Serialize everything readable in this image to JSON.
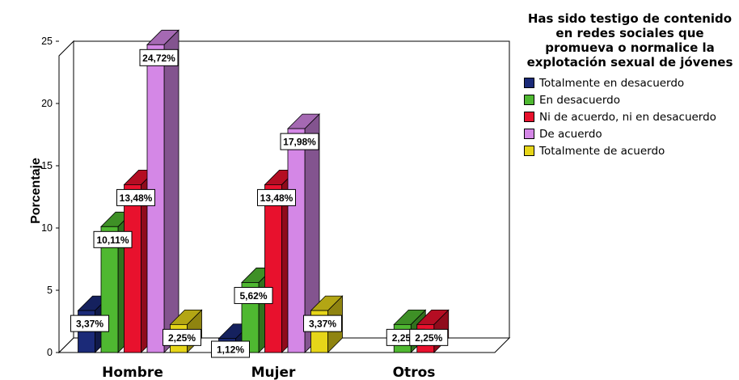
{
  "chart_data": {
    "type": "bar",
    "title": "Has sido testigo de contenido en redes sociales que promueva o normalice la explotación sexual de jóvenes",
    "xlabel": "",
    "ylabel": "Porcentaje",
    "ylim": [
      0,
      25
    ],
    "yticks": [
      "0",
      "5",
      "10",
      "15",
      "20",
      "25"
    ],
    "categories": [
      "Hombre",
      "Mujer",
      "Otros"
    ],
    "legend_position": "right",
    "series": [
      {
        "name": "Totalmente en desacuerdo",
        "color": "#1b2a78",
        "values": [
          3.37,
          1.12,
          null
        ],
        "labels": [
          "3,37%",
          "1,12%",
          ""
        ]
      },
      {
        "name": "En desacuerdo",
        "color": "#4fb831",
        "values": [
          10.11,
          5.62,
          2.25
        ],
        "labels": [
          "10,11%",
          "5,62%",
          "2,25%"
        ]
      },
      {
        "name": "Ni de acuerdo, ni en desacuerdo",
        "color": "#e8112d",
        "values": [
          13.48,
          13.48,
          2.25
        ],
        "labels": [
          "13,48%",
          "13,48%",
          "2,25%"
        ]
      },
      {
        "name": "De acuerdo",
        "color": "#d487e6",
        "values": [
          24.72,
          17.98,
          null
        ],
        "labels": [
          "24,72%",
          "17,98%",
          ""
        ]
      },
      {
        "name": "Totalmente de acuerdo",
        "color": "#e6d519",
        "values": [
          2.25,
          3.37,
          null
        ],
        "labels": [
          "2,25%",
          "3,37%",
          ""
        ]
      }
    ]
  }
}
